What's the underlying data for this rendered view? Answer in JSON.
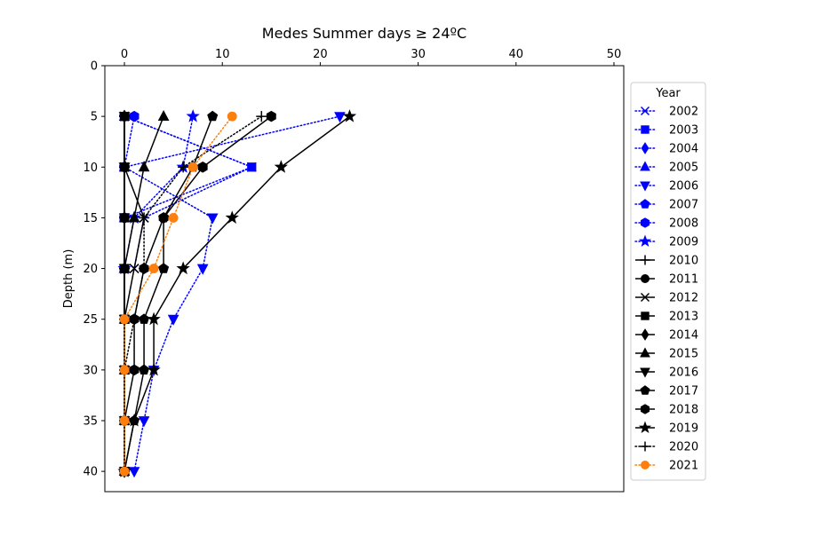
{
  "chart_data": {
    "type": "line",
    "title": "Medes Summer days ≥ 24ºC",
    "xlabel": "",
    "ylabel": "Depth (m)",
    "xlim": [
      -2,
      51
    ],
    "ylim": [
      42,
      0
    ],
    "x_axis_position": "top",
    "y_inverted": true,
    "grid": false,
    "x_ticks": [
      0,
      10,
      20,
      30,
      40,
      50
    ],
    "y_ticks": [
      0,
      5,
      10,
      15,
      20,
      25,
      30,
      35,
      40
    ],
    "legend": {
      "title": "Year",
      "placement": "right-outside"
    },
    "depths": [
      5,
      10,
      15,
      20,
      25,
      30,
      35,
      40
    ],
    "series": [
      {
        "name": "2002",
        "color": "#0000ff",
        "line": "dotted",
        "marker": "x",
        "points": [
          [
            0,
            5
          ],
          [
            13,
            10
          ],
          [
            2,
            15
          ],
          [
            1,
            20
          ]
        ]
      },
      {
        "name": "2003",
        "color": "#0000ff",
        "line": "dotted",
        "marker": "square",
        "points": [
          [
            0,
            5
          ],
          [
            13,
            10
          ],
          [
            0,
            15
          ],
          [
            0,
            20
          ]
        ]
      },
      {
        "name": "2004",
        "color": "#0000ff",
        "line": "dotted",
        "marker": "thin-diamond",
        "points": [
          [
            0,
            5
          ],
          [
            0,
            10
          ],
          [
            0,
            15
          ],
          [
            0,
            20
          ]
        ]
      },
      {
        "name": "2005",
        "color": "#0000ff",
        "line": "dotted",
        "marker": "triangle-up",
        "points": [
          [
            0,
            5
          ],
          [
            0,
            10
          ],
          [
            0,
            15
          ],
          [
            0,
            20
          ]
        ]
      },
      {
        "name": "2006",
        "color": "#0000ff",
        "line": "dotted",
        "marker": "triangle-down",
        "points": [
          [
            22,
            5
          ],
          [
            0,
            10
          ],
          [
            9,
            15
          ],
          [
            8,
            20
          ],
          [
            5,
            25
          ],
          [
            3,
            30
          ],
          [
            2,
            35
          ],
          [
            1,
            40
          ]
        ]
      },
      {
        "name": "2007",
        "color": "#0000ff",
        "line": "dotted",
        "marker": "pentagon",
        "points": [
          [
            0,
            5
          ],
          [
            0,
            10
          ],
          [
            0,
            15
          ],
          [
            0,
            20
          ]
        ]
      },
      {
        "name": "2008",
        "color": "#0000ff",
        "line": "dotted",
        "marker": "hexagon",
        "points": [
          [
            1,
            5
          ],
          [
            0,
            10
          ],
          [
            0,
            15
          ],
          [
            0,
            20
          ]
        ]
      },
      {
        "name": "2009",
        "color": "#0000ff",
        "line": "dotted",
        "marker": "star",
        "points": [
          [
            7,
            5
          ],
          [
            6,
            10
          ],
          [
            1,
            15
          ],
          [
            0,
            20
          ]
        ]
      },
      {
        "name": "2010",
        "color": "#000000",
        "line": "solid",
        "marker": "plus",
        "points": [
          [
            0,
            5
          ],
          [
            0,
            10
          ],
          [
            0,
            15
          ],
          [
            0,
            20
          ],
          [
            0,
            25
          ],
          [
            0,
            30
          ],
          [
            0,
            35
          ],
          [
            0,
            40
          ]
        ]
      },
      {
        "name": "2011",
        "color": "#000000",
        "line": "solid",
        "marker": "circle",
        "points": [
          [
            0,
            5
          ],
          [
            0,
            10
          ],
          [
            0,
            15
          ],
          [
            0,
            20
          ],
          [
            0,
            25
          ],
          [
            0,
            30
          ],
          [
            0,
            35
          ],
          [
            0,
            40
          ]
        ]
      },
      {
        "name": "2012",
        "color": "#000000",
        "line": "solid",
        "marker": "x",
        "points": [
          [
            0,
            5
          ],
          [
            0,
            10
          ],
          [
            2,
            15
          ],
          [
            1,
            20
          ],
          [
            0,
            25
          ],
          [
            0,
            30
          ],
          [
            0,
            35
          ],
          [
            0,
            40
          ]
        ]
      },
      {
        "name": "2013",
        "color": "#000000",
        "line": "solid",
        "marker": "square",
        "points": [
          [
            0,
            5
          ],
          [
            0,
            10
          ],
          [
            0,
            15
          ],
          [
            0,
            20
          ],
          [
            0,
            25
          ],
          [
            0,
            30
          ],
          [
            0,
            35
          ],
          [
            0,
            40
          ]
        ]
      },
      {
        "name": "2014",
        "color": "#000000",
        "line": "solid",
        "marker": "thin-diamond",
        "points": [
          [
            0,
            5
          ],
          [
            0,
            10
          ],
          [
            0,
            15
          ],
          [
            0,
            20
          ],
          [
            0,
            25
          ],
          [
            0,
            30
          ],
          [
            0,
            35
          ],
          [
            0,
            40
          ]
        ]
      },
      {
        "name": "2015",
        "color": "#000000",
        "line": "solid",
        "marker": "triangle-up",
        "points": [
          [
            4,
            5
          ],
          [
            2,
            10
          ],
          [
            1,
            15
          ],
          [
            0,
            20
          ],
          [
            0,
            25
          ],
          [
            0,
            30
          ],
          [
            0,
            35
          ],
          [
            0,
            40
          ]
        ]
      },
      {
        "name": "2016",
        "color": "#000000",
        "line": "solid",
        "marker": "triangle-down",
        "points": [
          [
            0,
            5
          ],
          [
            0,
            10
          ],
          [
            0,
            15
          ],
          [
            0,
            20
          ],
          [
            0,
            25
          ],
          [
            0,
            30
          ],
          [
            0,
            35
          ],
          [
            0,
            40
          ]
        ]
      },
      {
        "name": "2017",
        "color": "#000000",
        "line": "solid",
        "marker": "pentagon",
        "points": [
          [
            9,
            5
          ],
          [
            7,
            10
          ],
          [
            4,
            15
          ],
          [
            4,
            20
          ],
          [
            2,
            25
          ],
          [
            2,
            30
          ],
          [
            1,
            35
          ],
          [
            0,
            40
          ]
        ]
      },
      {
        "name": "2018",
        "color": "#000000",
        "line": "solid",
        "marker": "hexagon",
        "points": [
          [
            15,
            5
          ],
          [
            8,
            10
          ],
          [
            4,
            15
          ],
          [
            2,
            20
          ],
          [
            1,
            25
          ],
          [
            1,
            30
          ],
          [
            0,
            35
          ],
          [
            0,
            40
          ]
        ]
      },
      {
        "name": "2019",
        "color": "#000000",
        "line": "solid",
        "marker": "star",
        "points": [
          [
            23,
            5
          ],
          [
            16,
            10
          ],
          [
            11,
            15
          ],
          [
            6,
            20
          ],
          [
            3,
            25
          ],
          [
            3,
            30
          ],
          [
            1,
            35
          ],
          [
            0,
            40
          ]
        ]
      },
      {
        "name": "2020",
        "color": "#000000",
        "line": "dotted",
        "marker": "plus",
        "points": [
          [
            14,
            5
          ],
          [
            6,
            10
          ],
          [
            2,
            15
          ],
          [
            2,
            20
          ],
          [
            1,
            25
          ],
          [
            0,
            30
          ],
          [
            0,
            35
          ],
          [
            0,
            40
          ]
        ]
      },
      {
        "name": "2021",
        "color": "#ff7f0e",
        "line": "dotted",
        "marker": "circle",
        "points": [
          [
            11,
            5
          ],
          [
            7,
            10
          ],
          [
            5,
            15
          ],
          [
            3,
            20
          ],
          [
            0,
            25
          ],
          [
            0,
            30
          ],
          [
            0,
            35
          ],
          [
            0,
            40
          ]
        ]
      }
    ]
  }
}
